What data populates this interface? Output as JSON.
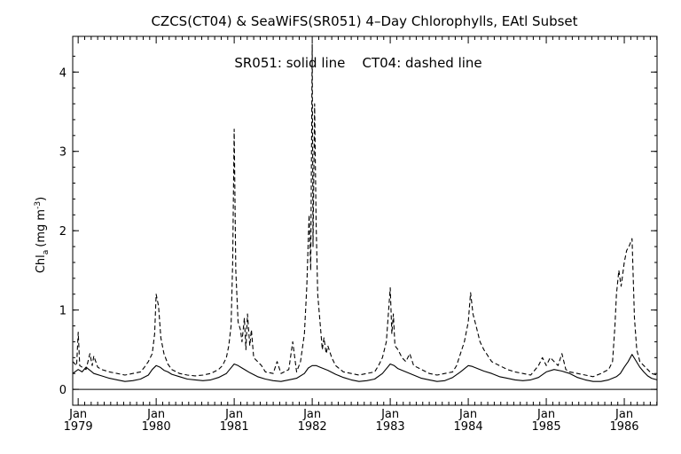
{
  "chart_data": {
    "type": "line",
    "title": "CZCS(CT04) & SeaWiFS(SR051) 4–Day Chlorophylls, EAtl Subset",
    "annotation": "SR051: solid line    CT04: dashed line",
    "ylabel_main": "Chl",
    "ylabel_sub": "a",
    "ylabel_unit": "(mg m",
    "ylabel_exp": "-3",
    "ylabel_close": ")",
    "xlim": [
      1978.93,
      1986.42
    ],
    "ylim": [
      -0.2,
      4.45
    ],
    "reference_line": 0,
    "yticks": [
      {
        "value": 0,
        "label": "0"
      },
      {
        "value": 1,
        "label": "1"
      },
      {
        "value": 2,
        "label": "2"
      },
      {
        "value": 3,
        "label": "3"
      },
      {
        "value": 4,
        "label": "4"
      }
    ],
    "xticks": [
      {
        "value": 1979.0,
        "label1": "Jan",
        "label2": "1979"
      },
      {
        "value": 1980.0,
        "label1": "Jan",
        "label2": "1980"
      },
      {
        "value": 1981.0,
        "label1": "Jan",
        "label2": "1981"
      },
      {
        "value": 1982.0,
        "label1": "Jan",
        "label2": "1982"
      },
      {
        "value": 1983.0,
        "label1": "Jan",
        "label2": "1983"
      },
      {
        "value": 1984.0,
        "label1": "Jan",
        "label2": "1984"
      },
      {
        "value": 1985.0,
        "label1": "Jan",
        "label2": "1985"
      },
      {
        "value": 1986.0,
        "label1": "Jan",
        "label2": "1986"
      }
    ],
    "series": [
      {
        "name": "SR051",
        "style": "solid",
        "color": "#000000",
        "x": [
          1978.93,
          1979.0,
          1979.05,
          1979.1,
          1979.15,
          1979.2,
          1979.3,
          1979.4,
          1979.5,
          1979.6,
          1979.7,
          1979.8,
          1979.9,
          1979.95,
          1980.0,
          1980.05,
          1980.1,
          1980.15,
          1980.2,
          1980.3,
          1980.4,
          1980.5,
          1980.6,
          1980.7,
          1980.8,
          1980.9,
          1980.95,
          1981.0,
          1981.05,
          1981.1,
          1981.15,
          1981.2,
          1981.3,
          1981.4,
          1981.5,
          1981.6,
          1981.7,
          1981.8,
          1981.9,
          1981.95,
          1982.0,
          1982.05,
          1982.1,
          1982.2,
          1982.3,
          1982.4,
          1982.5,
          1982.6,
          1982.7,
          1982.8,
          1982.9,
          1983.0,
          1983.05,
          1983.1,
          1983.2,
          1983.3,
          1983.4,
          1983.5,
          1983.6,
          1983.7,
          1983.8,
          1983.9,
          1984.0,
          1984.05,
          1984.1,
          1984.2,
          1984.3,
          1984.4,
          1984.5,
          1984.6,
          1984.7,
          1984.8,
          1984.9,
          1985.0,
          1985.1,
          1985.2,
          1985.3,
          1985.4,
          1985.5,
          1985.6,
          1985.7,
          1985.8,
          1985.9,
          1985.95,
          1986.0,
          1986.05,
          1986.1,
          1986.15,
          1986.2,
          1986.25,
          1986.3,
          1986.35,
          1986.42
        ],
        "y": [
          0.2,
          0.25,
          0.22,
          0.28,
          0.24,
          0.2,
          0.17,
          0.14,
          0.12,
          0.1,
          0.11,
          0.13,
          0.18,
          0.25,
          0.3,
          0.28,
          0.24,
          0.22,
          0.19,
          0.16,
          0.13,
          0.12,
          0.11,
          0.12,
          0.15,
          0.2,
          0.26,
          0.32,
          0.3,
          0.27,
          0.24,
          0.21,
          0.16,
          0.13,
          0.11,
          0.1,
          0.12,
          0.14,
          0.2,
          0.27,
          0.3,
          0.3,
          0.28,
          0.24,
          0.19,
          0.15,
          0.12,
          0.1,
          0.11,
          0.13,
          0.2,
          0.32,
          0.3,
          0.26,
          0.22,
          0.18,
          0.14,
          0.12,
          0.1,
          0.11,
          0.15,
          0.22,
          0.3,
          0.29,
          0.27,
          0.23,
          0.2,
          0.16,
          0.14,
          0.12,
          0.11,
          0.12,
          0.15,
          0.22,
          0.25,
          0.23,
          0.2,
          0.15,
          0.12,
          0.1,
          0.1,
          0.12,
          0.16,
          0.2,
          0.28,
          0.35,
          0.44,
          0.36,
          0.28,
          0.22,
          0.17,
          0.14,
          0.12
        ]
      },
      {
        "name": "CT04",
        "style": "dashed",
        "color": "#000000",
        "x": [
          1978.93,
          1978.98,
          1979.0,
          1979.02,
          1979.05,
          1979.1,
          1979.15,
          1979.18,
          1979.2,
          1979.25,
          1979.3,
          1979.4,
          1979.5,
          1979.6,
          1979.7,
          1979.8,
          1979.85,
          1979.9,
          1979.95,
          1979.98,
          1980.0,
          1980.03,
          1980.06,
          1980.1,
          1980.15,
          1980.2,
          1980.3,
          1980.4,
          1980.5,
          1980.6,
          1980.7,
          1980.8,
          1980.85,
          1980.9,
          1980.93,
          1980.96,
          1980.98,
          1981.0,
          1981.02,
          1981.05,
          1981.08,
          1981.1,
          1981.13,
          1981.15,
          1981.17,
          1981.2,
          1981.22,
          1981.25,
          1981.3,
          1981.35,
          1981.4,
          1981.5,
          1981.55,
          1981.6,
          1981.7,
          1981.75,
          1981.8,
          1981.85,
          1981.9,
          1981.93,
          1981.96,
          1981.98,
          1982.0,
          1982.01,
          1982.03,
          1982.05,
          1982.07,
          1982.1,
          1982.13,
          1982.15,
          1982.18,
          1982.2,
          1982.25,
          1982.3,
          1982.4,
          1982.5,
          1982.6,
          1982.7,
          1982.8,
          1982.85,
          1982.9,
          1982.95,
          1983.0,
          1983.02,
          1983.04,
          1983.06,
          1983.1,
          1983.15,
          1983.2,
          1983.25,
          1983.3,
          1983.4,
          1983.5,
          1983.6,
          1983.7,
          1983.8,
          1983.85,
          1983.9,
          1983.95,
          1984.0,
          1984.03,
          1984.06,
          1984.1,
          1984.15,
          1984.2,
          1984.3,
          1984.4,
          1984.5,
          1984.6,
          1984.7,
          1984.8,
          1984.9,
          1984.95,
          1985.0,
          1985.05,
          1985.1,
          1985.15,
          1985.2,
          1985.25,
          1985.3,
          1985.4,
          1985.5,
          1985.6,
          1985.7,
          1985.8,
          1985.85,
          1985.88,
          1985.9,
          1985.93,
          1985.96,
          1986.0,
          1986.03,
          1986.06,
          1986.1,
          1986.13,
          1986.16,
          1986.2,
          1986.25,
          1986.3,
          1986.35,
          1986.42
        ],
        "y": [
          0.35,
          0.3,
          0.72,
          0.3,
          0.28,
          0.25,
          0.45,
          0.3,
          0.42,
          0.28,
          0.25,
          0.22,
          0.2,
          0.18,
          0.2,
          0.22,
          0.28,
          0.35,
          0.45,
          0.7,
          1.2,
          1.05,
          0.65,
          0.45,
          0.32,
          0.25,
          0.2,
          0.18,
          0.17,
          0.18,
          0.2,
          0.25,
          0.3,
          0.4,
          0.55,
          0.8,
          1.6,
          3.28,
          1.5,
          0.85,
          0.75,
          0.6,
          0.9,
          0.5,
          0.95,
          0.55,
          0.75,
          0.4,
          0.35,
          0.3,
          0.22,
          0.2,
          0.35,
          0.2,
          0.25,
          0.6,
          0.22,
          0.35,
          0.7,
          1.3,
          2.2,
          1.5,
          4.35,
          1.8,
          3.6,
          2.1,
          1.2,
          0.85,
          0.5,
          0.65,
          0.45,
          0.55,
          0.4,
          0.3,
          0.22,
          0.2,
          0.18,
          0.2,
          0.22,
          0.3,
          0.4,
          0.6,
          1.28,
          0.7,
          0.95,
          0.55,
          0.5,
          0.4,
          0.35,
          0.45,
          0.3,
          0.25,
          0.2,
          0.18,
          0.2,
          0.22,
          0.3,
          0.45,
          0.6,
          0.85,
          1.22,
          0.95,
          0.8,
          0.6,
          0.5,
          0.35,
          0.3,
          0.25,
          0.22,
          0.2,
          0.18,
          0.3,
          0.4,
          0.3,
          0.4,
          0.35,
          0.3,
          0.45,
          0.25,
          0.22,
          0.2,
          0.18,
          0.16,
          0.2,
          0.25,
          0.35,
          0.8,
          1.2,
          1.5,
          1.3,
          1.6,
          1.75,
          1.8,
          1.9,
          0.9,
          0.5,
          0.35,
          0.3,
          0.25,
          0.2,
          0.18
        ]
      }
    ]
  }
}
